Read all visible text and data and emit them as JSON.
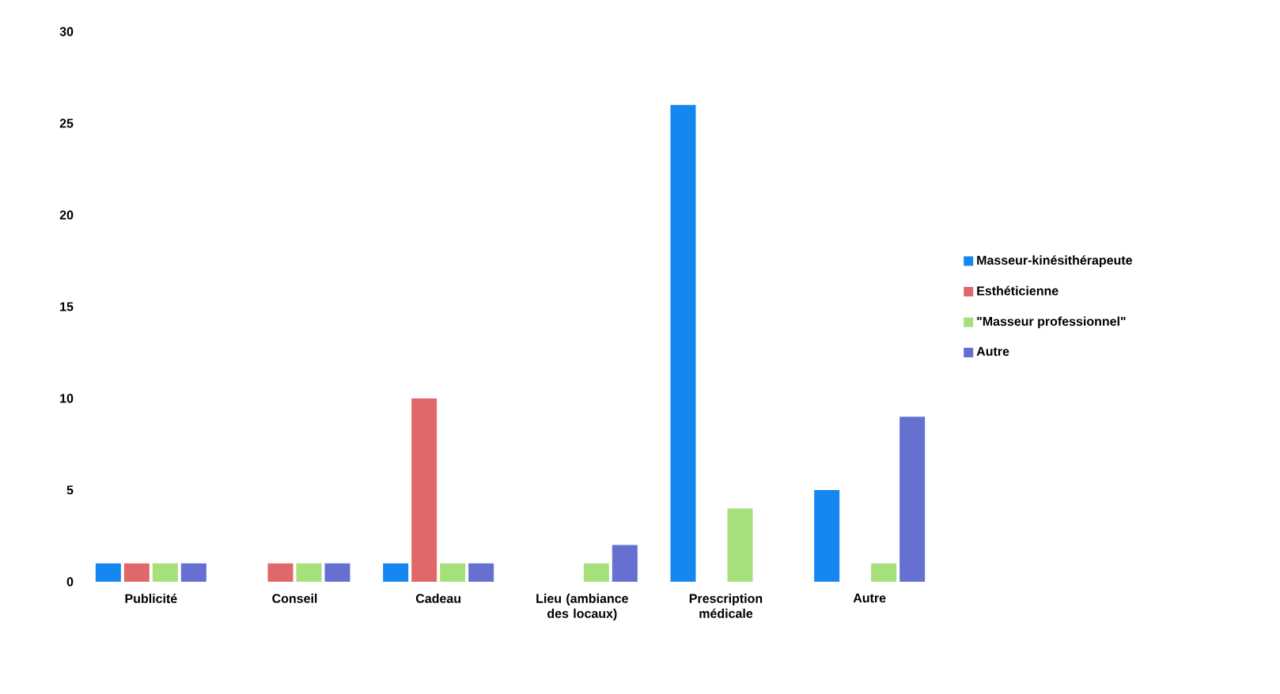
{
  "chart_data": {
    "type": "bar",
    "categories": [
      "Publicité",
      "Conseil",
      "Cadeau",
      "Lieu (ambiance des locaux)",
      "Prescription médicale",
      "Autre"
    ],
    "series": [
      {
        "name": "Masseur-kinésithérapeute",
        "color": "#1686f0",
        "values": [
          1,
          0,
          1,
          0,
          26,
          5
        ]
      },
      {
        "name": "Esthéticienne",
        "color": "#e06868",
        "values": [
          1,
          1,
          10,
          0,
          0,
          0
        ]
      },
      {
        "name": "\"Masseur professionnel\"",
        "color": "#a6e07a",
        "values": [
          1,
          1,
          1,
          1,
          4,
          1
        ]
      },
      {
        "name": "Autre",
        "color": "#6670d0",
        "values": [
          1,
          1,
          1,
          2,
          0,
          9
        ]
      }
    ],
    "ylim": [
      0,
      30
    ],
    "yticks": [
      0,
      5,
      10,
      15,
      20,
      25,
      30
    ],
    "legend": "right"
  }
}
